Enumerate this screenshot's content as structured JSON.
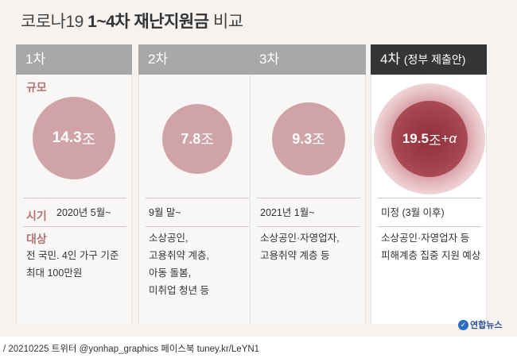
{
  "title": {
    "prefix": "코로나19 ",
    "bold": "1~4차 재난지원금",
    "suffix": " 비교"
  },
  "labels": {
    "scale": "규모",
    "period": "시기",
    "target": "대상"
  },
  "columns": [
    {
      "head": "1차",
      "paren": "",
      "amount": "14.3",
      "unit": "조",
      "extra": "",
      "period": "2020년 5월~",
      "targets": [
        "전 국민. 4인 가구 기준",
        "최대 100만원"
      ]
    },
    {
      "head": "2차",
      "paren": "",
      "amount": "7.8",
      "unit": "조",
      "extra": "",
      "period": "9월 말~",
      "targets": [
        "소상공인,",
        "고용취약 계층,",
        "아동 돌봄,",
        "미취업 청년 등"
      ]
    },
    {
      "head": "3차",
      "paren": "",
      "amount": "9.3",
      "unit": "조",
      "extra": "",
      "period": "2021년 1월~",
      "targets": [
        "소상공인·자영업자,",
        "고용취약 계층 등"
      ]
    },
    {
      "head": "4차",
      "paren": "(정부 제출안)",
      "amount": "19.5",
      "unit": "조",
      "extra": "+α",
      "period": "미정 (3월 이후)",
      "targets": [
        "소상공인·자영업자 등",
        "피해계층 집중 지원 예상"
      ]
    }
  ],
  "logo": "연합뉴스",
  "footer": "/ 20210225 트위터 @yonhap_graphics  페이스북 tuney.kr/LeYN1",
  "colors": {
    "circle": "#cfa3a7",
    "circle_dark": "#9b3b46",
    "label": "#b07274",
    "header": "#a8a8a8",
    "header_dark": "#353535"
  }
}
